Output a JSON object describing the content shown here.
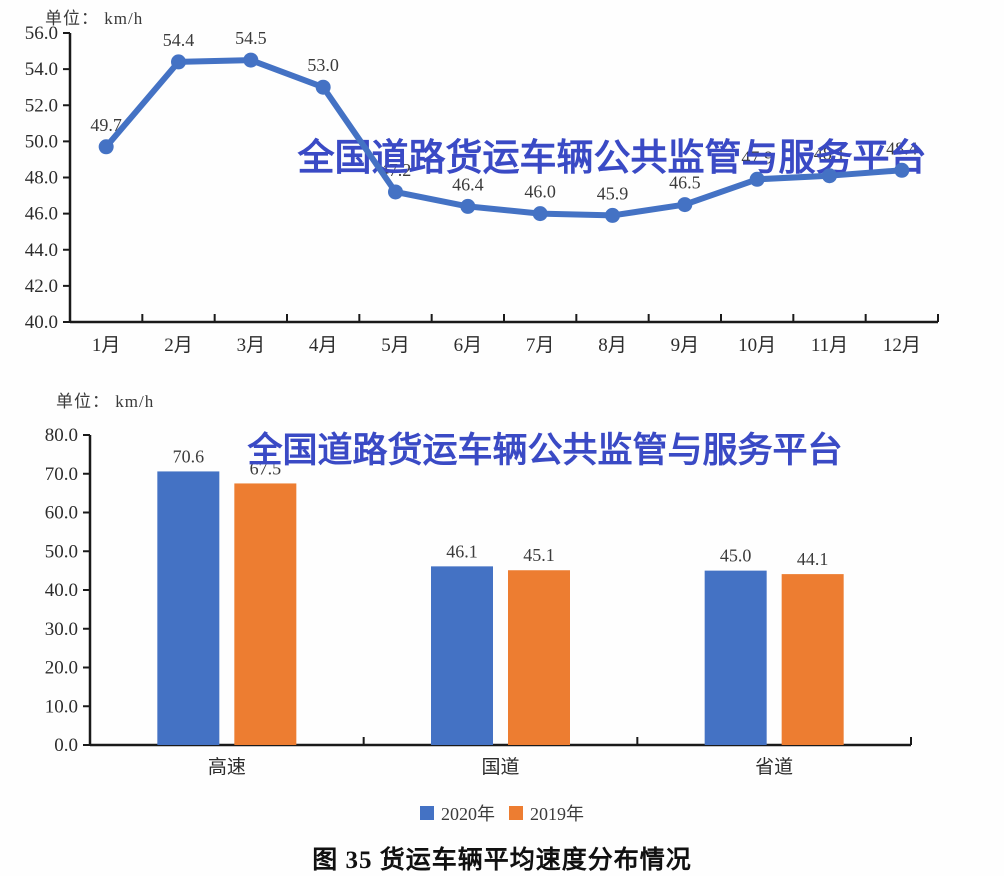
{
  "page": {
    "caption": "图 35 货运车辆平均速度分布情况",
    "watermark": "全国道路货运车辆公共监管与服务平台",
    "colors": {
      "series_blue": "#4472C4",
      "series_orange": "#ED7D31",
      "watermark_blue": "#3A4AC5",
      "axis": "#1a1a1a",
      "text": "#3b3b3b"
    }
  },
  "chart_data": [
    {
      "type": "line",
      "unit_label": "单位： km/h",
      "x": [
        "1月",
        "2月",
        "3月",
        "4月",
        "5月",
        "6月",
        "7月",
        "8月",
        "9月",
        "10月",
        "11月",
        "12月"
      ],
      "series": [
        {
          "name": "平均速度",
          "color": "#4472C4",
          "values": [
            49.7,
            54.4,
            54.5,
            53.0,
            47.2,
            46.4,
            46.0,
            45.9,
            46.5,
            47.9,
            48.1,
            48.4
          ]
        }
      ],
      "ylim": [
        40.0,
        56.0
      ],
      "ytick_step": 2.0,
      "ytick_labels": [
        "40.0",
        "42.0",
        "44.0",
        "46.0",
        "48.0",
        "50.0",
        "52.0",
        "54.0",
        "56.0"
      ],
      "grid": false,
      "legend_position": "none",
      "watermark": "全国道路货运车辆公共监管与服务平台"
    },
    {
      "type": "bar",
      "unit_label": "单位： km/h",
      "categories": [
        "高速",
        "国道",
        "省道"
      ],
      "series": [
        {
          "name": "2020年",
          "color": "#4472C4",
          "values": [
            70.6,
            46.1,
            45.0
          ]
        },
        {
          "name": "2019年",
          "color": "#ED7D31",
          "values": [
            67.5,
            45.1,
            44.1
          ]
        }
      ],
      "ylim": [
        0.0,
        80.0
      ],
      "ytick_step": 10.0,
      "ytick_labels": [
        "0.0",
        "10.0",
        "20.0",
        "30.0",
        "40.0",
        "50.0",
        "60.0",
        "70.0",
        "80.0"
      ],
      "grid": false,
      "legend_position": "bottom",
      "watermark": "全国道路货运车辆公共监管与服务平台"
    }
  ]
}
